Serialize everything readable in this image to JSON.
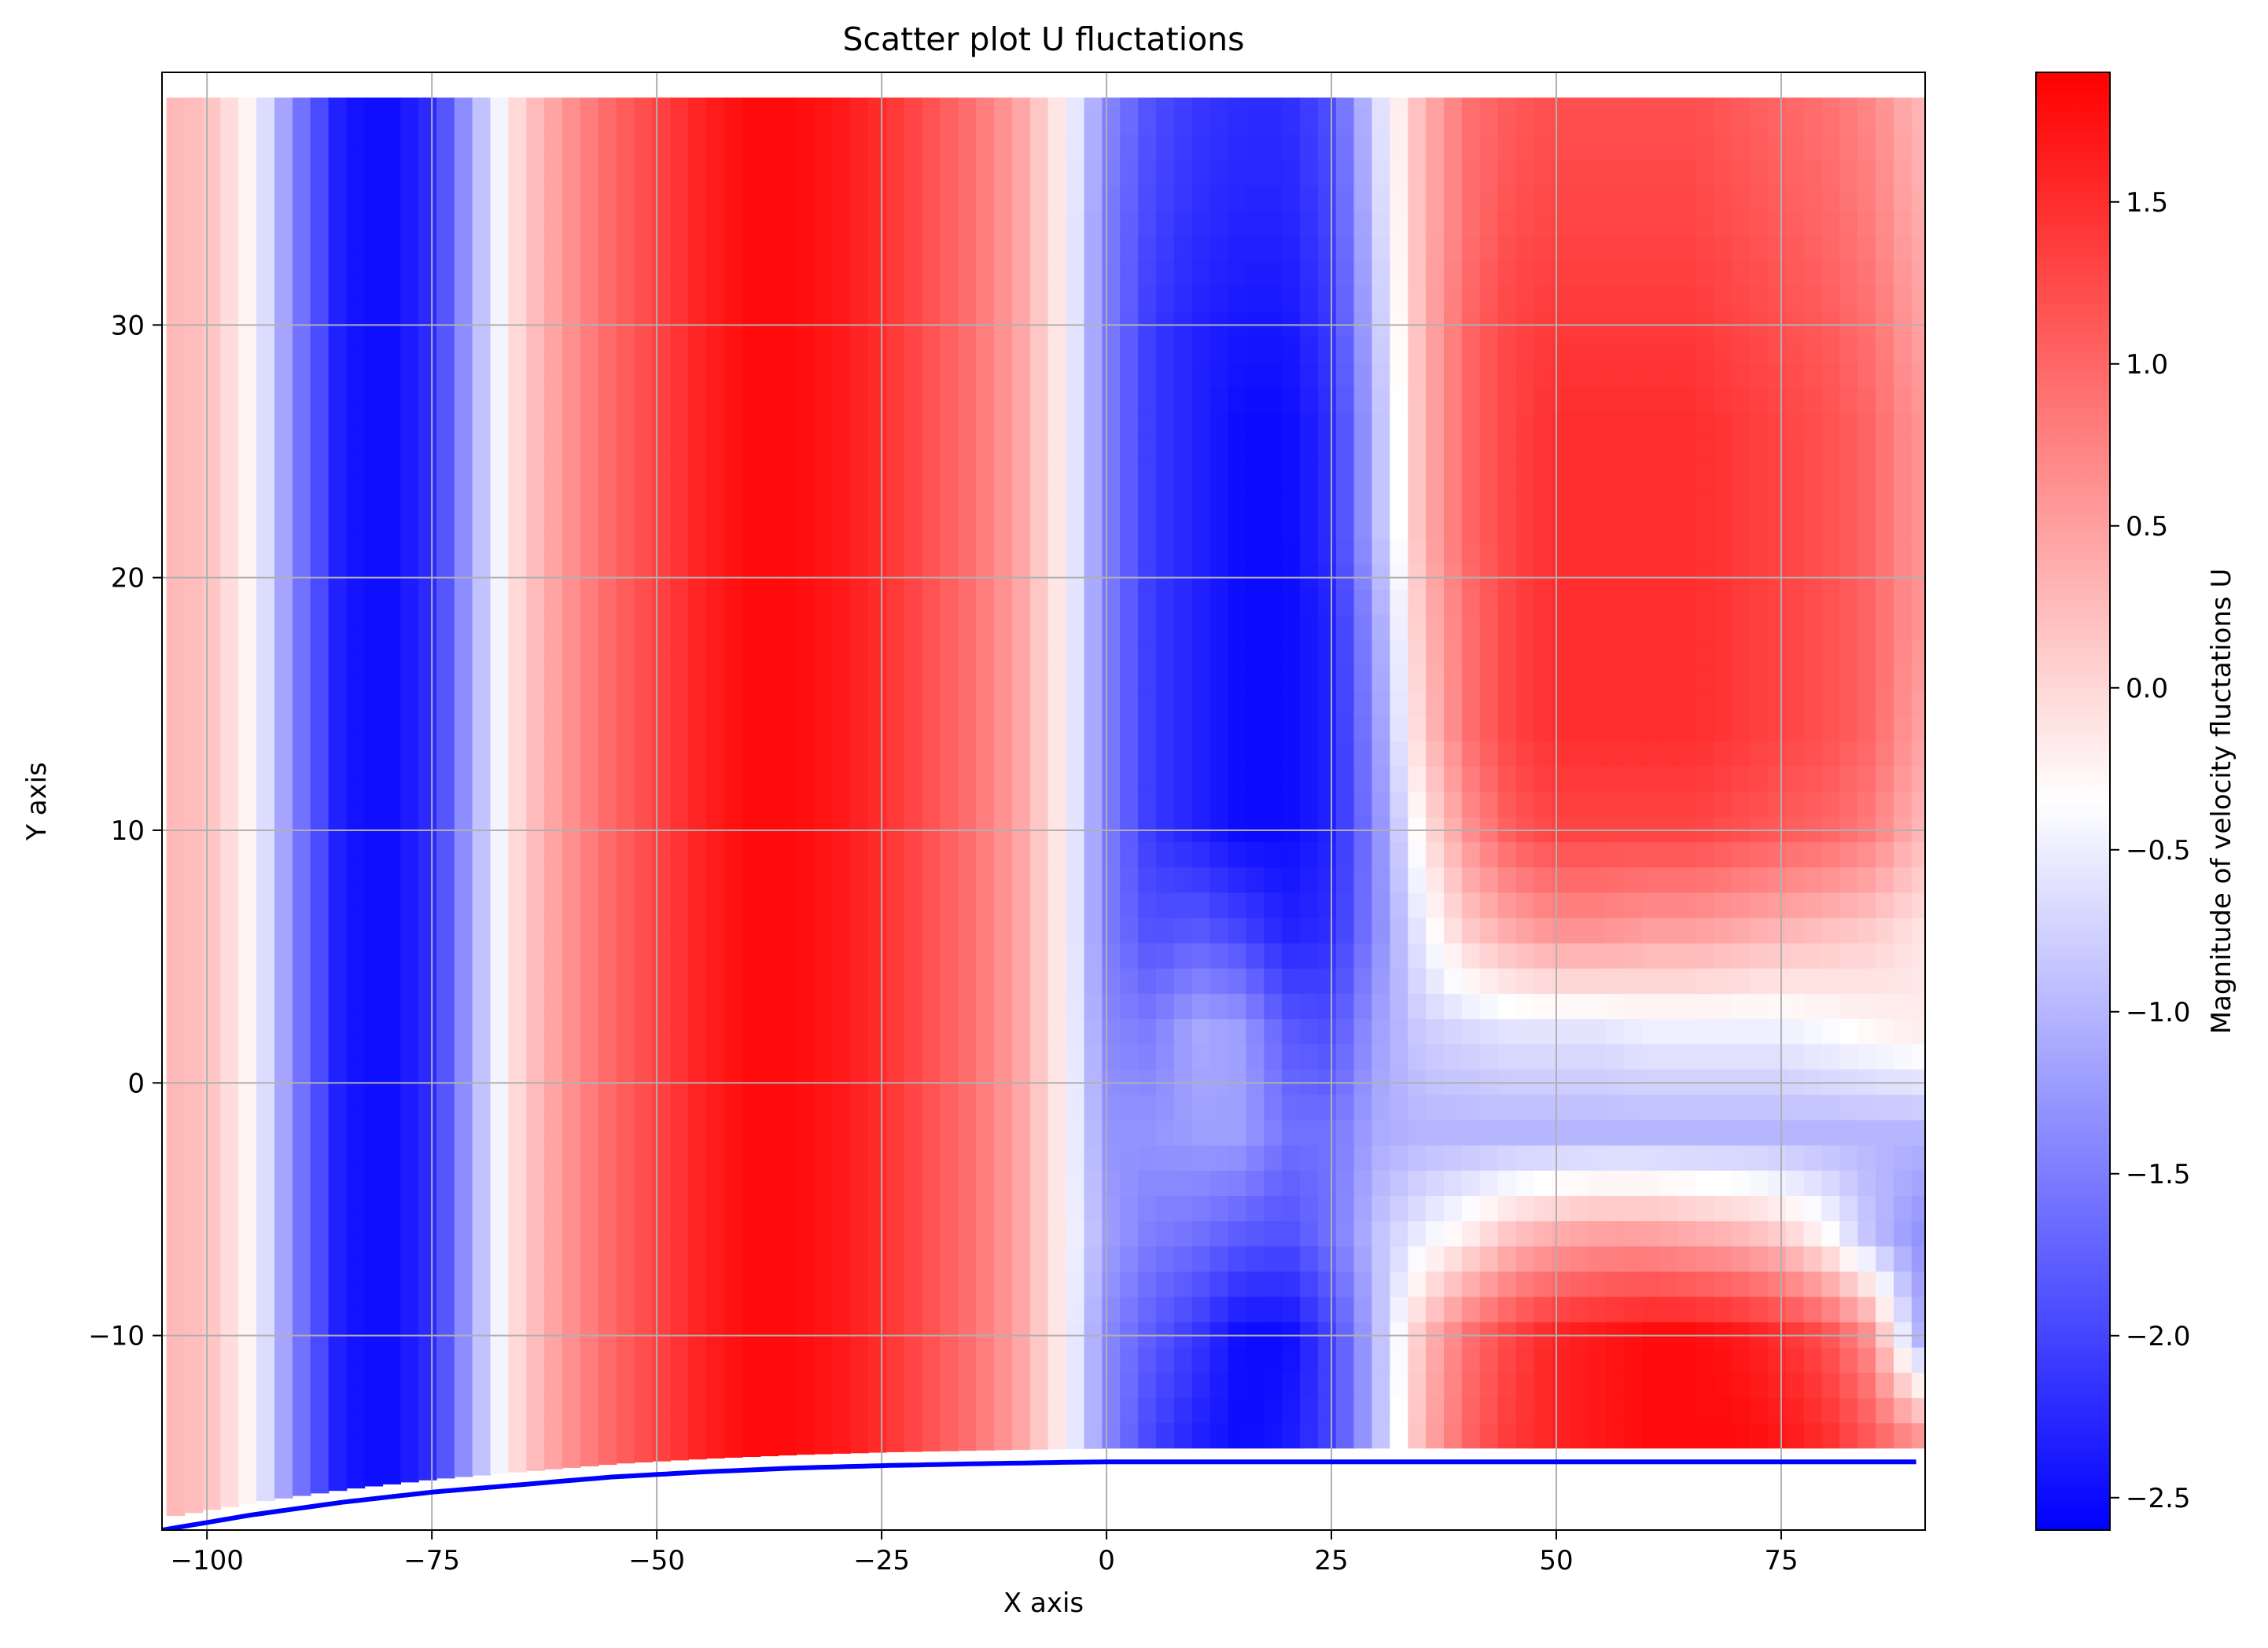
{
  "chart_data": {
    "type": "heatmap",
    "title": "Scatter plot U fluctations",
    "xlabel": "X axis",
    "ylabel": "Y axis",
    "colorbar_label": "Magnitude of velocity fluctations U",
    "colormap": "bwr",
    "colors": {
      "low": "#0000ff",
      "mid": "#ffffff",
      "high": "#ff0000",
      "grid": "#b0b0b0",
      "wall_line": "#0000ff"
    },
    "xlim": [
      -105,
      91
    ],
    "ylim": [
      -17.7,
      40
    ],
    "x_ticks": [
      {
        "value": -100,
        "label": "−100"
      },
      {
        "value": -75,
        "label": "−75"
      },
      {
        "value": -50,
        "label": "−50"
      },
      {
        "value": -25,
        "label": "−25"
      },
      {
        "value": 0,
        "label": "0"
      },
      {
        "value": 25,
        "label": "25"
      },
      {
        "value": 50,
        "label": "50"
      },
      {
        "value": 75,
        "label": "75"
      }
    ],
    "y_ticks": [
      {
        "value": -10,
        "label": "−10"
      },
      {
        "value": 0,
        "label": "0"
      },
      {
        "value": 10,
        "label": "10"
      },
      {
        "value": 20,
        "label": "20"
      },
      {
        "value": 30,
        "label": "30"
      }
    ],
    "grid": true,
    "color_range": [
      -2.6,
      1.9
    ],
    "colorbar_ticks": [
      {
        "value": 1.5,
        "label": "1.5"
      },
      {
        "value": 1.0,
        "label": "1.0"
      },
      {
        "value": 0.5,
        "label": "0.5"
      },
      {
        "value": 0.0,
        "label": "0.0"
      },
      {
        "value": -0.5,
        "label": "−0.5"
      },
      {
        "value": -1.0,
        "label": "−1.0"
      },
      {
        "value": -1.5,
        "label": "−1.5"
      },
      {
        "value": -2.0,
        "label": "−2.0"
      },
      {
        "value": -2.5,
        "label": "−2.5"
      }
    ],
    "field": {
      "x": [
        -105,
        -100,
        -95,
        -90,
        -85,
        -80,
        -75,
        -70,
        -65,
        -60,
        -55,
        -50,
        -45,
        -40,
        -35,
        -30,
        -25,
        -20,
        -15,
        -10,
        -5,
        0,
        5,
        10,
        15,
        20,
        25,
        30,
        35,
        40,
        45,
        50,
        55,
        60,
        65,
        70,
        75,
        80,
        85,
        90
      ],
      "y": [
        -14,
        -10,
        -6,
        -2,
        2,
        6,
        10,
        14,
        18,
        22,
        26,
        30,
        34,
        39
      ],
      "u": [
        [
          0.3,
          0.2,
          -0.3,
          -1.5,
          -2.4,
          -2.5,
          -2.2,
          -1.0,
          0.1,
          0.6,
          1.0,
          1.3,
          1.6,
          1.8,
          1.8,
          1.7,
          1.5,
          1.2,
          0.9,
          0.5,
          -0.2,
          -1.4,
          -2.0,
          -2.3,
          -2.5,
          -2.4,
          -2.0,
          -1.0,
          0.3,
          1.0,
          1.4,
          1.6,
          1.7,
          1.8,
          1.8,
          1.8,
          1.7,
          1.5,
          1.1,
          0.6
        ],
        [
          0.3,
          0.2,
          -0.3,
          -1.5,
          -2.4,
          -2.5,
          -2.2,
          -1.0,
          0.1,
          0.6,
          1.0,
          1.3,
          1.6,
          1.8,
          1.8,
          1.7,
          1.5,
          1.2,
          0.9,
          0.5,
          -0.2,
          -1.4,
          -1.8,
          -2.1,
          -2.5,
          -2.5,
          -2.0,
          -1.0,
          0.2,
          0.9,
          1.3,
          1.6,
          1.7,
          1.8,
          1.8,
          1.7,
          1.5,
          1.2,
          0.6,
          -1.0
        ],
        [
          0.3,
          0.2,
          -0.3,
          -1.5,
          -2.4,
          -2.5,
          -2.2,
          -1.0,
          0.1,
          0.6,
          1.0,
          1.3,
          1.6,
          1.8,
          1.8,
          1.7,
          1.5,
          1.2,
          0.9,
          0.5,
          -0.2,
          -1.2,
          -1.5,
          -1.6,
          -1.8,
          -1.9,
          -1.6,
          -0.9,
          -0.5,
          -0.2,
          0.2,
          0.4,
          0.5,
          0.5,
          0.4,
          0.3,
          0.1,
          -0.3,
          -0.9,
          -1.3
        ],
        [
          0.3,
          0.2,
          -0.3,
          -1.5,
          -2.4,
          -2.5,
          -2.2,
          -1.0,
          0.1,
          0.6,
          1.0,
          1.3,
          1.6,
          1.8,
          1.8,
          1.7,
          1.5,
          1.2,
          0.9,
          0.5,
          -0.2,
          -1.3,
          -1.3,
          -1.2,
          -1.2,
          -1.6,
          -1.6,
          -1.1,
          -1.0,
          -1.0,
          -1.0,
          -1.0,
          -1.0,
          -1.0,
          -1.0,
          -1.0,
          -1.0,
          -1.0,
          -1.0,
          -1.0
        ],
        [
          0.3,
          0.2,
          -0.3,
          -1.5,
          -2.4,
          -2.5,
          -2.2,
          -1.0,
          0.1,
          0.6,
          1.0,
          1.3,
          1.6,
          1.8,
          1.8,
          1.7,
          1.5,
          1.2,
          0.9,
          0.5,
          -0.2,
          -1.4,
          -1.5,
          -1.1,
          -1.2,
          -1.8,
          -1.9,
          -1.2,
          -0.8,
          -0.7,
          -0.6,
          -0.6,
          -0.6,
          -0.5,
          -0.5,
          -0.5,
          -0.5,
          -0.4,
          -0.3,
          -0.2
        ],
        [
          0.3,
          0.2,
          -0.3,
          -1.5,
          -2.4,
          -2.5,
          -2.2,
          -1.0,
          0.1,
          0.6,
          1.0,
          1.3,
          1.6,
          1.8,
          1.8,
          1.7,
          1.5,
          1.2,
          0.9,
          0.5,
          -0.2,
          -1.5,
          -1.9,
          -1.8,
          -2.0,
          -2.3,
          -2.2,
          -1.4,
          -0.5,
          0.1,
          0.4,
          0.6,
          0.6,
          0.5,
          0.5,
          0.4,
          0.3,
          0.2,
          0.1,
          -0.1
        ],
        [
          0.3,
          0.2,
          -0.3,
          -1.5,
          -2.4,
          -2.5,
          -2.2,
          -1.0,
          0.1,
          0.6,
          1.0,
          1.3,
          1.6,
          1.8,
          1.8,
          1.7,
          1.5,
          1.2,
          0.9,
          0.5,
          -0.2,
          -1.5,
          -2.1,
          -2.3,
          -2.5,
          -2.5,
          -2.3,
          -1.4,
          -0.2,
          0.6,
          1.1,
          1.3,
          1.3,
          1.3,
          1.3,
          1.2,
          1.1,
          1.0,
          0.8,
          0.3
        ],
        [
          0.3,
          0.2,
          -0.3,
          -1.5,
          -2.4,
          -2.5,
          -2.2,
          -1.0,
          0.1,
          0.6,
          1.0,
          1.3,
          1.6,
          1.8,
          1.8,
          1.7,
          1.5,
          1.2,
          0.9,
          0.5,
          -0.2,
          -1.5,
          -2.1,
          -2.3,
          -2.5,
          -2.5,
          -2.3,
          -1.3,
          0.1,
          0.9,
          1.3,
          1.5,
          1.5,
          1.5,
          1.5,
          1.4,
          1.3,
          1.2,
          1.0,
          0.5
        ],
        [
          0.3,
          0.2,
          -0.3,
          -1.5,
          -2.4,
          -2.5,
          -2.2,
          -1.0,
          0.1,
          0.6,
          1.0,
          1.3,
          1.6,
          1.8,
          1.8,
          1.7,
          1.5,
          1.2,
          0.9,
          0.5,
          -0.2,
          -1.5,
          -2.1,
          -2.3,
          -2.5,
          -2.5,
          -2.3,
          -1.2,
          0.2,
          0.9,
          1.3,
          1.5,
          1.5,
          1.5,
          1.5,
          1.4,
          1.3,
          1.2,
          1.0,
          0.6
        ],
        [
          0.3,
          0.2,
          -0.3,
          -1.5,
          -2.4,
          -2.5,
          -2.2,
          -1.0,
          0.1,
          0.6,
          1.0,
          1.3,
          1.6,
          1.8,
          1.8,
          1.7,
          1.5,
          1.2,
          0.9,
          0.5,
          -0.2,
          -1.5,
          -2.1,
          -2.3,
          -2.5,
          -2.5,
          -2.2,
          -1.0,
          0.3,
          1.0,
          1.3,
          1.5,
          1.5,
          1.5,
          1.5,
          1.4,
          1.3,
          1.2,
          1.0,
          0.6
        ],
        [
          0.3,
          0.2,
          -0.3,
          -1.5,
          -2.4,
          -2.5,
          -2.2,
          -1.0,
          0.1,
          0.6,
          1.0,
          1.3,
          1.6,
          1.8,
          1.8,
          1.7,
          1.5,
          1.2,
          0.9,
          0.5,
          -0.2,
          -1.5,
          -2.1,
          -2.3,
          -2.5,
          -2.5,
          -2.2,
          -1.0,
          0.3,
          1.0,
          1.3,
          1.5,
          1.5,
          1.5,
          1.5,
          1.4,
          1.3,
          1.2,
          1.0,
          0.6
        ],
        [
          0.3,
          0.2,
          -0.3,
          -1.5,
          -2.4,
          -2.5,
          -2.2,
          -1.0,
          0.1,
          0.6,
          1.0,
          1.3,
          1.6,
          1.8,
          1.8,
          1.7,
          1.5,
          1.2,
          0.9,
          0.5,
          -0.2,
          -1.5,
          -2.1,
          -2.3,
          -2.4,
          -2.4,
          -2.1,
          -0.9,
          0.3,
          1.0,
          1.3,
          1.4,
          1.4,
          1.4,
          1.4,
          1.3,
          1.2,
          1.1,
          0.9,
          0.5
        ],
        [
          0.3,
          0.2,
          -0.3,
          -1.5,
          -2.4,
          -2.5,
          -2.2,
          -1.0,
          0.1,
          0.6,
          1.0,
          1.3,
          1.6,
          1.8,
          1.8,
          1.7,
          1.5,
          1.2,
          0.9,
          0.5,
          -0.2,
          -1.5,
          -2.0,
          -2.2,
          -2.3,
          -2.3,
          -2.0,
          -0.8,
          0.3,
          0.9,
          1.2,
          1.3,
          1.3,
          1.3,
          1.3,
          1.2,
          1.1,
          1.0,
          0.8,
          0.4
        ],
        [
          0.3,
          0.2,
          -0.3,
          -1.5,
          -2.4,
          -2.5,
          -2.2,
          -1.0,
          0.1,
          0.6,
          1.0,
          1.3,
          1.6,
          1.8,
          1.8,
          1.7,
          1.5,
          1.2,
          0.9,
          0.5,
          -0.2,
          -1.4,
          -1.9,
          -2.1,
          -2.2,
          -2.2,
          -1.9,
          -0.7,
          0.3,
          0.9,
          1.1,
          1.2,
          1.2,
          1.2,
          1.2,
          1.1,
          1.0,
          0.9,
          0.7,
          0.3
        ]
      ]
    },
    "wall_profile": {
      "x": [
        -105,
        -95,
        -85,
        -75,
        -65,
        -55,
        -45,
        -35,
        -25,
        -15,
        -5,
        0,
        25,
        50,
        75,
        90
      ],
      "y": [
        -17.7,
        -17.1,
        -16.6,
        -16.2,
        -15.9,
        -15.6,
        -15.4,
        -15.25,
        -15.15,
        -15.08,
        -15.02,
        -15.0,
        -15.0,
        -15.0,
        -15.0,
        -15.0
      ]
    }
  }
}
